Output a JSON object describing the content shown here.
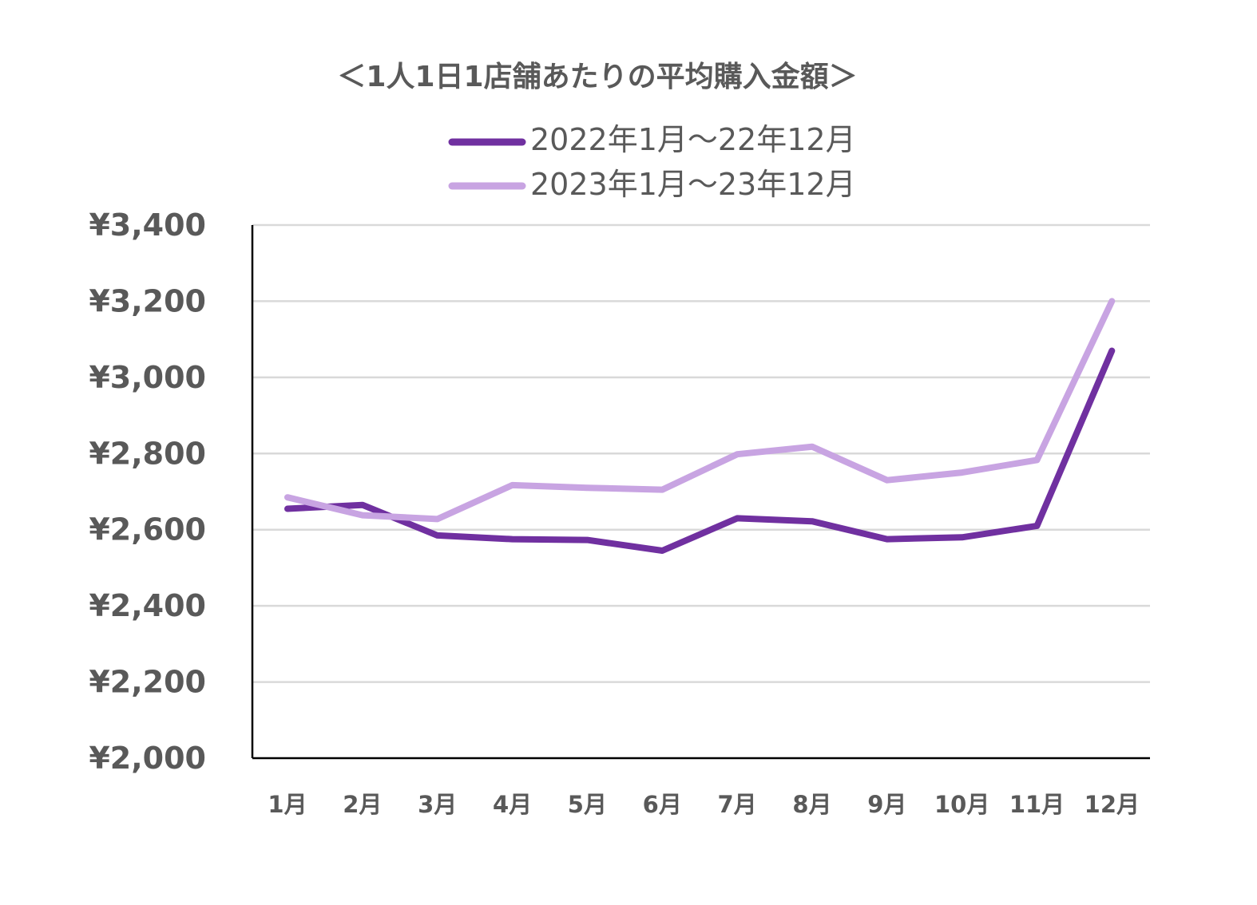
{
  "chart_data": {
    "type": "line",
    "title": "＜1人1日1店舗あたりの平均購入金額＞",
    "categories": [
      "1月",
      "2月",
      "3月",
      "4月",
      "5月",
      "6月",
      "7月",
      "8月",
      "9月",
      "10月",
      "11月",
      "12月"
    ],
    "series": [
      {
        "name": "2022年1月～22年12月",
        "color": "#7030a0",
        "values": [
          2655,
          2665,
          2585,
          2575,
          2573,
          2545,
          2630,
          2622,
          2575,
          2580,
          2610,
          3070
        ]
      },
      {
        "name": "2023年1月～23年12月",
        "color": "#c8a4e2",
        "values": [
          2685,
          2638,
          2628,
          2717,
          2710,
          2705,
          2798,
          2818,
          2730,
          2750,
          2783,
          3200
        ]
      }
    ],
    "yticks": [
      "¥2,000",
      "¥2,200",
      "¥2,400",
      "¥2,600",
      "¥2,800",
      "¥3,000",
      "¥3,200",
      "¥3,400"
    ],
    "ylim": [
      2000,
      3400
    ],
    "grid": true,
    "legend": "top-center"
  }
}
